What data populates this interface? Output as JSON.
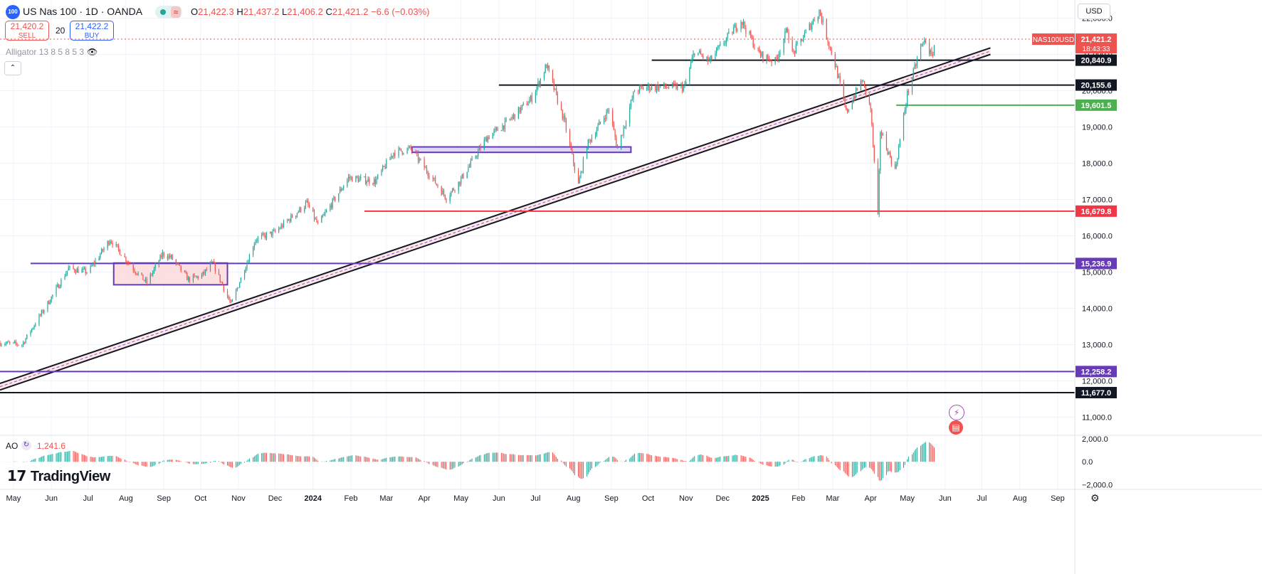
{
  "header": {
    "symbol_badge": "100",
    "title": "US Nas 100 · 1D · OANDA",
    "ohlc": {
      "o_label": "O",
      "o": "21,422.3",
      "h_label": "H",
      "h": "21,437.2",
      "l_label": "L",
      "l": "21,406.2",
      "c_label": "C",
      "c": "21,421.2",
      "change": "−6.6 (−0.03%)"
    },
    "sell_price": "21,420.2",
    "sell_label": "SELL",
    "spread": "20",
    "buy_price": "21,422.2",
    "buy_label": "BUY",
    "indicator": "Alligator 13 8 5 8 5 3",
    "currency": "USD"
  },
  "ao": {
    "label": "AO",
    "value": "1,241.6"
  },
  "logo": {
    "text": "TradingView"
  },
  "colors": {
    "up": "#26a69a",
    "down": "#ef5350",
    "purple": "#673ab7",
    "black": "#131722",
    "red_line": "#f23645",
    "green_line": "#4caf50",
    "grid": "#f0f3fa"
  },
  "chart_data": [
    {
      "type": "candlestick",
      "title": "US Nas 100 · 1D · OANDA",
      "ylim": [
        10500,
        22500
      ],
      "xlim": [
        "2023-04-20",
        "2025-09-15"
      ],
      "y_ticks": [
        "22,000.0",
        "21,000.0",
        "20,000.0",
        "19,000.0",
        "18,000.0",
        "17,000.0",
        "16,000.0",
        "15,000.0",
        "14,000.0",
        "13,000.0",
        "12,000.0",
        "11,000.0"
      ],
      "x_ticks": [
        "May",
        "Jun",
        "Jul",
        "Aug",
        "Sep",
        "Oct",
        "Nov",
        "Dec",
        "2024",
        "Feb",
        "Mar",
        "Apr",
        "May",
        "Jun",
        "Jul",
        "Aug",
        "Sep",
        "Oct",
        "Nov",
        "Dec",
        "2025",
        "Feb",
        "Mar",
        "Apr",
        "May",
        "Jun",
        "Jul",
        "Aug",
        "Sep"
      ],
      "path_anchors": [
        [
          "2023-04-20",
          13050
        ],
        [
          "2023-05-08",
          13000
        ],
        [
          "2023-06-01",
          14300
        ],
        [
          "2023-06-15",
          15100
        ],
        [
          "2023-07-01",
          15000
        ],
        [
          "2023-07-19",
          15900
        ],
        [
          "2023-08-07",
          15100
        ],
        [
          "2023-08-18",
          14700
        ],
        [
          "2023-08-31",
          15500
        ],
        [
          "2023-09-07",
          15400
        ],
        [
          "2023-09-21",
          14800
        ],
        [
          "2023-10-02",
          14900
        ],
        [
          "2023-10-11",
          15250
        ],
        [
          "2023-10-26",
          14100
        ],
        [
          "2023-11-15",
          15900
        ],
        [
          "2023-12-01",
          16100
        ],
        [
          "2023-12-27",
          16900
        ],
        [
          "2024-01-05",
          16300
        ],
        [
          "2024-01-30",
          17600
        ],
        [
          "2024-02-21",
          17500
        ],
        [
          "2024-03-07",
          18300
        ],
        [
          "2024-03-21",
          18400
        ],
        [
          "2024-04-19",
          17050
        ],
        [
          "2024-04-30",
          17500
        ],
        [
          "2024-05-22",
          18700
        ],
        [
          "2024-06-07",
          19100
        ],
        [
          "2024-06-28",
          19800
        ],
        [
          "2024-07-10",
          20700
        ],
        [
          "2024-07-25",
          19100
        ],
        [
          "2024-08-05",
          17400
        ],
        [
          "2024-08-12",
          18500
        ],
        [
          "2024-08-30",
          19500
        ],
        [
          "2024-09-06",
          18400
        ],
        [
          "2024-09-20",
          20000
        ],
        [
          "2024-10-01",
          20100
        ],
        [
          "2024-10-31",
          20100
        ],
        [
          "2024-11-08",
          21100
        ],
        [
          "2024-11-20",
          20800
        ],
        [
          "2024-12-16",
          21950
        ],
        [
          "2024-12-31",
          21000
        ],
        [
          "2025-01-13",
          20800
        ],
        [
          "2025-01-23",
          21700
        ],
        [
          "2025-01-27",
          21000
        ],
        [
          "2025-02-18",
          22200
        ],
        [
          "2025-03-04",
          20600
        ],
        [
          "2025-03-12",
          19400
        ],
        [
          "2025-03-25",
          20300
        ],
        [
          "2025-04-01",
          19500
        ],
        [
          "2025-04-07",
          16500
        ],
        [
          "2025-04-09",
          18900
        ],
        [
          "2025-04-21",
          17800
        ],
        [
          "2025-05-01",
          19900
        ],
        [
          "2025-05-12",
          21200
        ],
        [
          "2025-05-16",
          21400
        ],
        [
          "2025-05-21",
          20900
        ],
        [
          "2025-05-24",
          21420
        ]
      ],
      "annotations": {
        "horizontal_levels": [
          {
            "label": "20,840.9",
            "value": 20840.9,
            "color": "#131722",
            "from": "2024-10-04"
          },
          {
            "label": "20,155.6",
            "value": 20155.6,
            "color": "#131722",
            "from": "2024-06-01"
          },
          {
            "label": "19,601.5",
            "value": 19601.5,
            "color": "#4caf50",
            "from": "2025-04-22"
          },
          {
            "label": "16,679.8",
            "value": 16679.8,
            "color": "#f23645",
            "from": "2024-02-12"
          },
          {
            "label": "15,236.9",
            "value": 15236.9,
            "color": "#673ab7",
            "from": "2023-05-15"
          },
          {
            "label": "12,258.2",
            "value": 12258.2,
            "color": "#673ab7",
            "from": "2023-04-20"
          },
          {
            "label": "11,677.0",
            "value": 11677.0,
            "color": "#131722",
            "from": "2023-04-20"
          }
        ],
        "current_price": {
          "label": "21,421.2",
          "value": 21421.2,
          "countdown": "18:43:33",
          "symbol": "NAS100USD"
        },
        "trend_channel": {
          "start": [
            "2023-04-20",
            11750
          ],
          "end": [
            "2025-07-08",
            21000
          ],
          "width": 180
        },
        "zones": [
          {
            "from": "2023-07-22",
            "to": "2023-10-23",
            "low": 14650,
            "high": 15250,
            "fill": "#fbd7da"
          },
          {
            "from": "2024-03-22",
            "to": "2024-09-17",
            "low": 18300,
            "high": 18450,
            "fill": "#d6cdf7"
          }
        ]
      }
    },
    {
      "type": "histogram",
      "title": "AO",
      "ylim": [
        -2400,
        2300
      ],
      "y_ticks": [
        "2,000.0",
        "0.0",
        "−2,000.0"
      ],
      "last_value": 1241.6
    }
  ]
}
